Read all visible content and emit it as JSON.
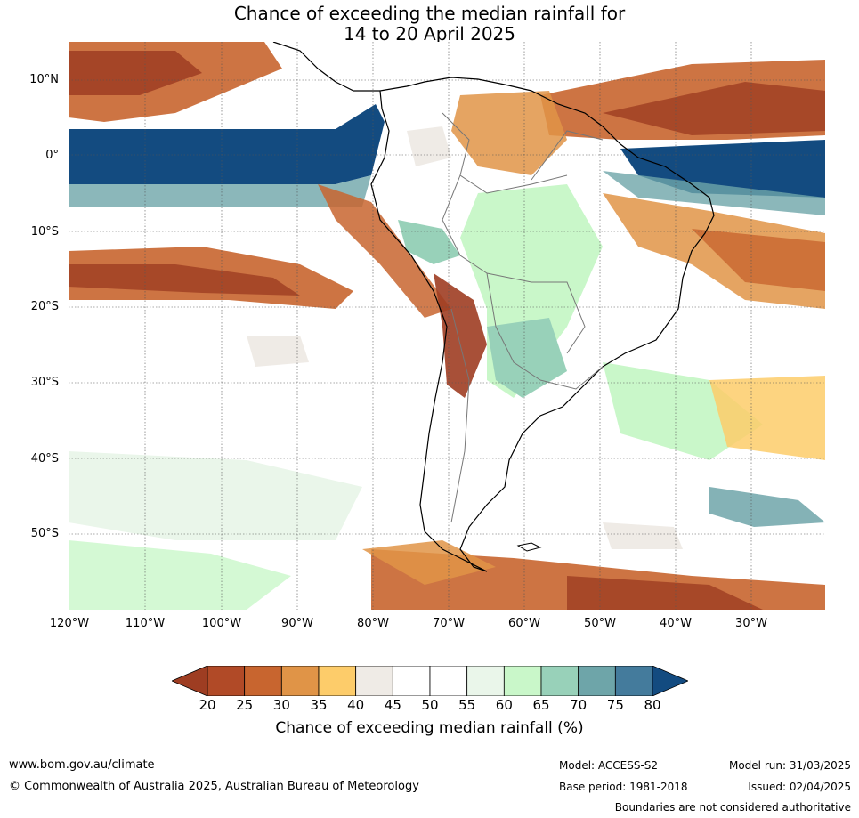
{
  "title": {
    "line1": "Chance of exceeding the median rainfall for",
    "line2": "14 to 20 April 2025"
  },
  "map": {
    "lat_labels": [
      "10°N",
      "0°",
      "10°S",
      "20°S",
      "30°S",
      "40°S",
      "50°S"
    ],
    "lon_labels": [
      "120°W",
      "110°W",
      "100°W",
      "90°W",
      "80°W",
      "70°W",
      "60°W",
      "50°W",
      "40°W",
      "30°W"
    ]
  },
  "colorbar": {
    "label": "Chance of exceeding median rainfall (%)",
    "ticks": [
      "20",
      "25",
      "30",
      "35",
      "40",
      "45",
      "50",
      "55",
      "60",
      "65",
      "70",
      "75",
      "80"
    ],
    "colors": [
      "#9e3d22",
      "#b14a27",
      "#c8652f",
      "#e09447",
      "#fdcc6a",
      "#efebe6",
      "#ffffff",
      "#ffffff",
      "#eaf6ea",
      "#c9f7c9",
      "#98d1b9",
      "#6ea5a9",
      "#447b9c",
      "#134b80"
    ]
  },
  "footer": {
    "website": "www.bom.gov.au/climate",
    "copyright": "© Commonwealth of Australia 2025, Australian Bureau of Meteorology",
    "model": "Model: ACCESS-S2",
    "base_period": "Base period: 1981-2018",
    "model_run": "Model run: 31/03/2025",
    "issued": "Issued: 02/04/2025",
    "disclaimer": "Boundaries are not considered authoritative"
  }
}
